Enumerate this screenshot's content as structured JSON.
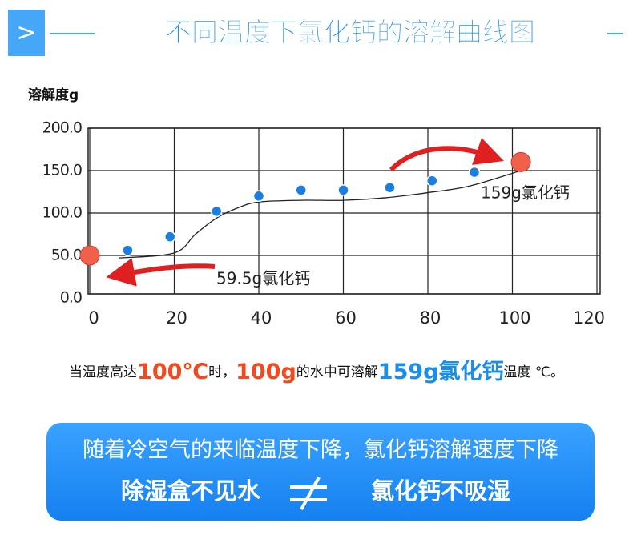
{
  "header": {
    "icon": ">",
    "title": "不同温度下氯化钙的溶解曲线图"
  },
  "chart_data": {
    "type": "scatter",
    "y_label": "溶解度g",
    "xlim": [
      0,
      120
    ],
    "xticks": [
      0,
      20,
      40,
      60,
      80,
      100,
      120
    ],
    "ylim": [
      0,
      200
    ],
    "yticks": [
      {
        "value": 0,
        "label": "0.0"
      },
      {
        "value": 50,
        "label": "50.0"
      },
      {
        "value": 100,
        "label": "100.0"
      },
      {
        "value": 150,
        "label": "150.0"
      },
      {
        "value": 200,
        "label": "200.0"
      }
    ],
    "grid": true,
    "series": [
      {
        "kind": "curve",
        "color": "#222222",
        "x": [
          7,
          20,
          25,
          30,
          35,
          40,
          50,
          60,
          70,
          80,
          90,
          102
        ],
        "values": [
          47,
          53,
          75,
          94,
          106,
          113,
          115,
          115,
          118,
          124,
          132,
          150
        ]
      },
      {
        "kind": "points",
        "color": "#1a7fe0",
        "x": [
          9,
          19,
          30,
          40,
          50,
          60,
          71,
          81,
          91
        ],
        "values": [
          56,
          72,
          102,
          120,
          127,
          127,
          130,
          138,
          148
        ]
      },
      {
        "kind": "points",
        "color": "#f0604a",
        "x": [
          0,
          102
        ],
        "values": [
          50,
          160
        ]
      }
    ],
    "annotations": [
      "59.5g氯化钙",
      "159g氯化钙"
    ]
  },
  "sentence": [
    "当温度高达",
    "100℃",
    "时，",
    "100g",
    "的水中可溶解",
    "159g氯化钙",
    "温度 ℃。"
  ],
  "banner": {
    "line1": "随着冷空气的来临温度下降，氯化钙溶解速度下降",
    "left": "除湿盒不见水",
    "right": "氯化钙不吸湿"
  }
}
